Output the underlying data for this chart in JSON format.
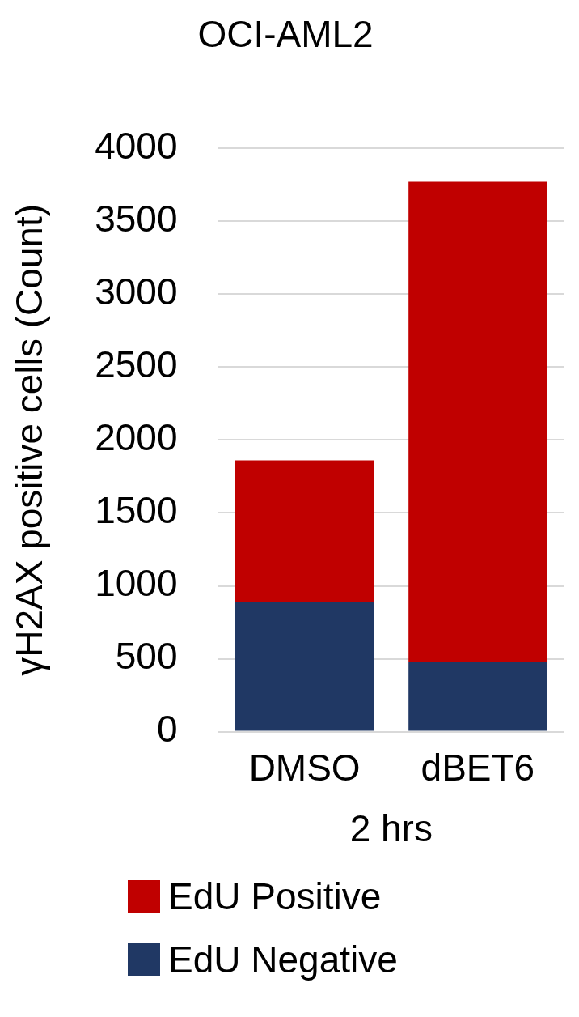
{
  "chart_data": {
    "type": "bar",
    "title": "OCI-AML2",
    "xlabel": "2 hrs",
    "ylabel": "γH2AX positive cells (Count)",
    "categories": [
      "DMSO",
      "dBET6"
    ],
    "stacked": true,
    "series": [
      {
        "name": "EdU Negative",
        "color": "#203864",
        "values": [
          890,
          480
        ]
      },
      {
        "name": "EdU Positive",
        "color": "#c00000",
        "values": [
          970,
          3290
        ]
      }
    ],
    "ylim": [
      0,
      4000
    ],
    "yticks": [
      0,
      500,
      1000,
      1500,
      2000,
      2500,
      3000,
      3500,
      4000
    ],
    "grid": "y",
    "legend": "bottom"
  }
}
